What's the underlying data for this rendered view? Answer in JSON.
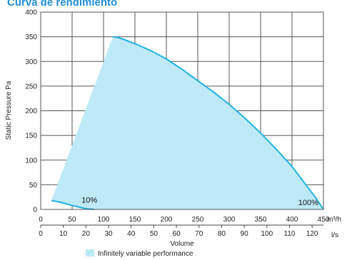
{
  "chart_data": {
    "type": "area",
    "title": "Curva de rendimiento",
    "ylabel": "Static Pressure Pa",
    "xlabel": "Volume",
    "x_unit_top": "m³/h",
    "x_unit_bottom": "l/s",
    "xlim_m3h": [
      0,
      450
    ],
    "ylim": [
      0,
      400
    ],
    "x_ticks_m3h": [
      0,
      50,
      100,
      150,
      200,
      250,
      300,
      350,
      400,
      450
    ],
    "x_ticks_ls": [
      0,
      10,
      20,
      30,
      40,
      50,
      60,
      70,
      80,
      90,
      100,
      110,
      120
    ],
    "y_ticks": [
      0,
      50,
      100,
      150,
      200,
      250,
      300,
      350,
      400
    ],
    "grid": true,
    "colors": {
      "fill": "#bfe9f7",
      "curve": "#1fb3e3",
      "grid": "#555555"
    },
    "series": [
      {
        "name": "100%",
        "x": [
          115,
          125,
          150,
          175,
          200,
          225,
          250,
          275,
          300,
          325,
          350,
          375,
          400,
          425,
          437,
          450
        ],
        "y": [
          350,
          348,
          336,
          322,
          305,
          284,
          261,
          238,
          213,
          185,
          155,
          122,
          87,
          45,
          25,
          0
        ]
      },
      {
        "name": "10%",
        "x": [
          17,
          30,
          50,
          70,
          85
        ],
        "y": [
          18,
          15,
          8,
          2,
          0
        ]
      }
    ],
    "area_region": {
      "x": [
        17,
        115,
        125,
        150,
        175,
        200,
        225,
        250,
        275,
        300,
        325,
        350,
        375,
        400,
        425,
        437,
        450,
        85,
        70,
        50,
        30,
        17
      ],
      "y": [
        18,
        350,
        348,
        336,
        322,
        305,
        284,
        261,
        238,
        213,
        185,
        155,
        122,
        87,
        45,
        25,
        0,
        0,
        2,
        8,
        15,
        18
      ]
    },
    "annotations": [
      {
        "text": "10%",
        "x": 65,
        "y": 14
      },
      {
        "text": "100%",
        "x": 410,
        "y": 9
      }
    ],
    "legend": {
      "label": "Infinitely variable performance",
      "placement": "bottom-left"
    }
  }
}
